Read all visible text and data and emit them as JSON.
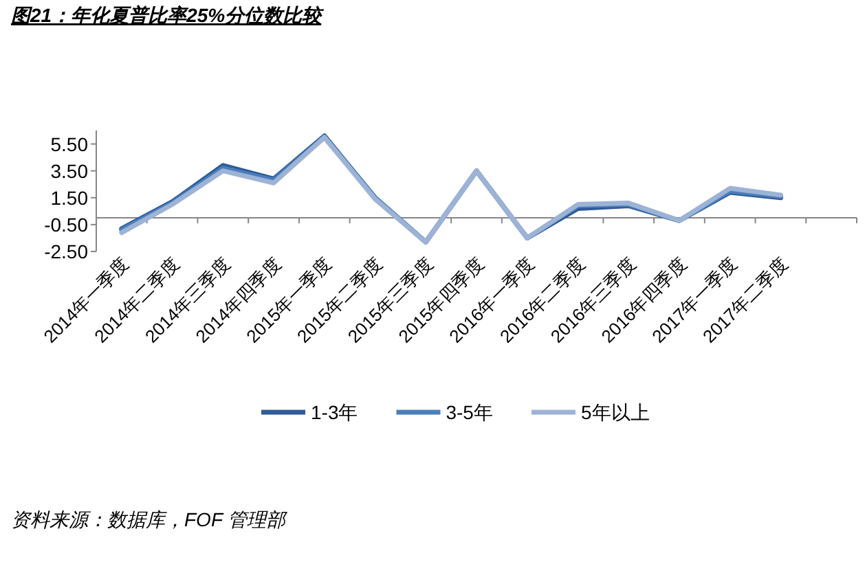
{
  "chart_data": {
    "type": "line",
    "title": "图21：年化夏普比率25%分位数比较",
    "categories": [
      "2014年一季度",
      "2014年二季度",
      "2014年三季度",
      "2014年四季度",
      "2015年一季度",
      "2015年二季度",
      "2015年三季度",
      "2015年四季度",
      "2016年一季度",
      "2016年二季度",
      "2016年三季度",
      "2016年四季度",
      "2017年一季度",
      "2017年二季度",
      null
    ],
    "series": [
      {
        "name": "1-3年",
        "color": "#2f5b97",
        "values": [
          -0.8,
          1.2,
          3.9,
          2.9,
          6.1,
          1.5,
          -1.8,
          3.5,
          -1.5,
          0.7,
          0.9,
          -0.2,
          1.9,
          1.5,
          null
        ]
      },
      {
        "name": "3-5年",
        "color": "#4a7ebb",
        "values": [
          -0.9,
          1.1,
          3.7,
          2.8,
          6.0,
          1.5,
          -1.8,
          3.5,
          -1.5,
          0.9,
          1.0,
          -0.2,
          2.0,
          1.6,
          null
        ]
      },
      {
        "name": "5年以上",
        "color": "#9db3d6",
        "values": [
          -1.1,
          1.0,
          3.5,
          2.6,
          6.0,
          1.4,
          -1.8,
          3.5,
          -1.5,
          1.0,
          1.1,
          -0.2,
          2.2,
          1.7,
          null
        ]
      }
    ],
    "ylim": [
      -2.5,
      6.5
    ],
    "yticks": [
      {
        "value": -2.5,
        "label": "-2.50"
      },
      {
        "value": -0.5,
        "label": "-0.50"
      },
      {
        "value": 1.5,
        "label": "1.50"
      },
      {
        "value": 3.5,
        "label": "3.50"
      },
      {
        "value": 5.5,
        "label": "5.50"
      }
    ],
    "grid": false,
    "legend": "bottom",
    "marker": "none",
    "line_style": "solid",
    "annotations": [
      "资料来源：数据库，FOF 管理部"
    ]
  }
}
